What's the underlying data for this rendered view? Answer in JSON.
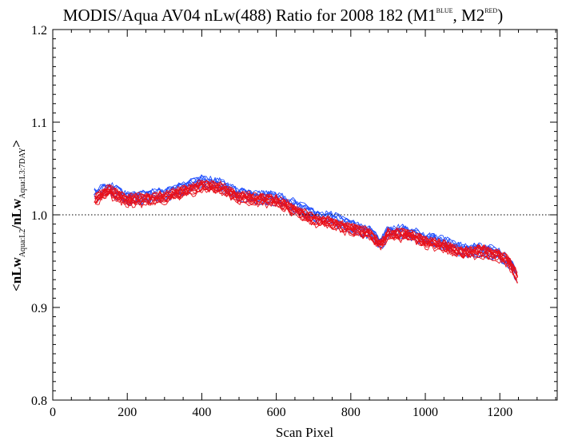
{
  "chart_data": {
    "type": "line",
    "title": {
      "main": "MODIS/Aqua AV04 nLw(488) Ratio for 2008 182 (M1",
      "m1_sup": "BLUE",
      "sep": ", M2",
      "m2_sup": "RED",
      "close": ")"
    },
    "xlabel": "Scan Pixel",
    "ylabel": {
      "open": "<nLw",
      "sub1": "Aqua:L2",
      "mid": "/nLw",
      "sub2": "Aqua:L3:7DAY",
      "close": ">"
    },
    "xlim": [
      0,
      1354
    ],
    "ylim": [
      0.8,
      1.2
    ],
    "x_ticks": [
      0,
      200,
      400,
      600,
      800,
      1000,
      1200
    ],
    "x_tick_labels": [
      "0",
      "200",
      "400",
      "600",
      "800",
      "1000",
      "1200"
    ],
    "y_ticks": [
      0.8,
      0.9,
      1.0,
      1.1,
      1.2
    ],
    "y_tick_labels": [
      "0.8",
      "0.9",
      "1.0",
      "1.1",
      "1.2"
    ],
    "reference_line": 1.0,
    "grid": false,
    "series_groups": [
      {
        "group": "M1",
        "color": "#1f4fff",
        "count": 8,
        "x": [
          110,
          150,
          200,
          250,
          300,
          350,
          400,
          450,
          500,
          550,
          600,
          650,
          700,
          750,
          800,
          850,
          880,
          900,
          950,
          1000,
          1050,
          1100,
          1150,
          1200,
          1225,
          1250
        ],
        "values": [
          1.022,
          1.029,
          1.018,
          1.02,
          1.022,
          1.029,
          1.036,
          1.032,
          1.022,
          1.02,
          1.018,
          1.01,
          1.0,
          0.996,
          0.988,
          0.982,
          0.968,
          0.982,
          0.982,
          0.974,
          0.97,
          0.962,
          0.962,
          0.958,
          0.95,
          0.93
        ]
      },
      {
        "group": "M2",
        "color": "#e8111b",
        "count": 14,
        "x": [
          110,
          150,
          200,
          250,
          300,
          350,
          400,
          450,
          500,
          550,
          600,
          650,
          700,
          750,
          800,
          850,
          880,
          900,
          950,
          1000,
          1050,
          1100,
          1150,
          1200,
          1225,
          1250
        ],
        "values": [
          1.015,
          1.025,
          1.015,
          1.016,
          1.018,
          1.024,
          1.03,
          1.028,
          1.018,
          1.016,
          1.014,
          1.004,
          0.994,
          0.99,
          0.984,
          0.978,
          0.966,
          0.978,
          0.978,
          0.97,
          0.966,
          0.958,
          0.96,
          0.955,
          0.948,
          0.928
        ]
      }
    ]
  }
}
